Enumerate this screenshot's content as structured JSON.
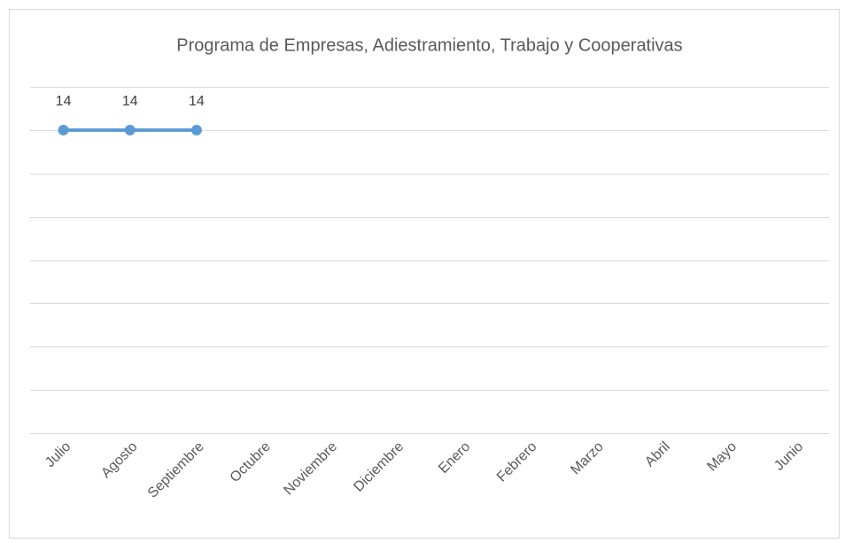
{
  "chart_data": {
    "type": "line",
    "title": "Programa de Empresas, Adiestramiento, Trabajo y Cooperativas",
    "categories": [
      "Julio",
      "Agosto",
      "Septiembre",
      "Octubre",
      "Noviembre",
      "Diciembre",
      "Enero",
      "Febrero",
      "Marzo",
      "Abril",
      "Mayo",
      "Junio"
    ],
    "series": [
      {
        "color": "#5b9bd5",
        "values": [
          14,
          14,
          14,
          null,
          null,
          null,
          null,
          null,
          null,
          null,
          null,
          null
        ]
      }
    ],
    "ylim": [
      0,
      16
    ],
    "yticks": [
      0,
      2,
      4,
      6,
      8,
      10,
      12,
      14,
      16
    ],
    "grid": true
  }
}
